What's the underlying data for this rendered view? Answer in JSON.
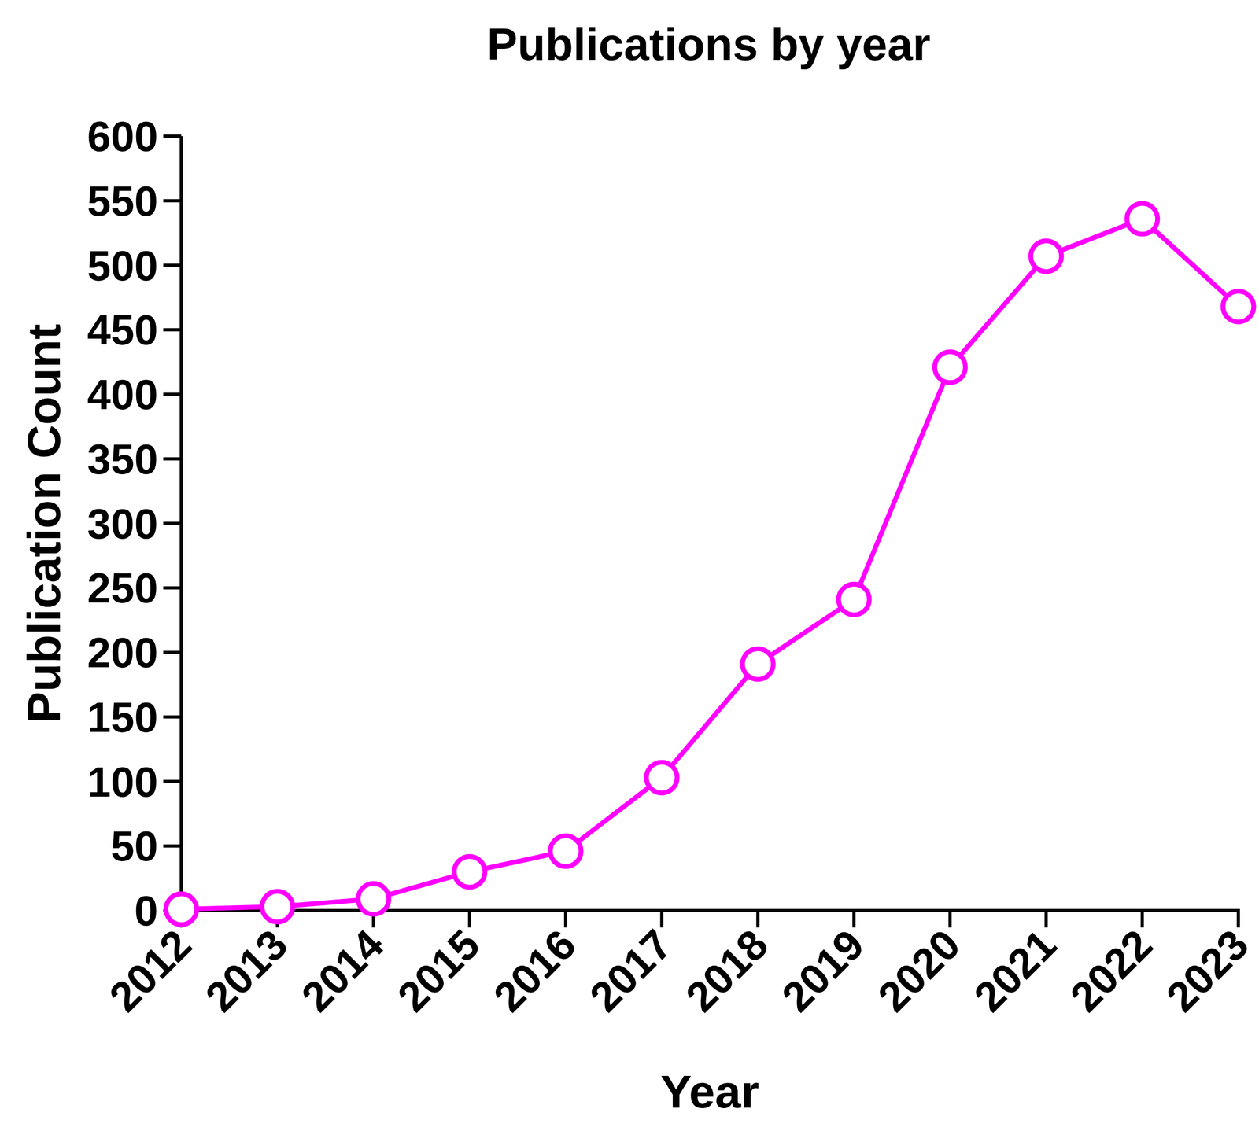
{
  "chart_data": {
    "type": "line",
    "title": "Publications by year",
    "x_label": "Year",
    "y_label": "Publication Count",
    "categories": [
      "2012",
      "2013",
      "2014",
      "2015",
      "2016",
      "2017",
      "2018",
      "2019",
      "2020",
      "2021",
      "2022",
      "2023"
    ],
    "values": [
      1,
      3,
      9,
      30,
      46,
      103,
      191,
      241,
      421,
      507,
      536,
      468
    ],
    "color": "#ff00ff",
    "marker": "circle",
    "line_style": "solid",
    "ylim": [
      0,
      600
    ],
    "yticks": [
      0,
      50,
      100,
      150,
      200,
      250,
      300,
      350,
      400,
      450,
      500,
      550,
      600
    ],
    "grid": false
  }
}
